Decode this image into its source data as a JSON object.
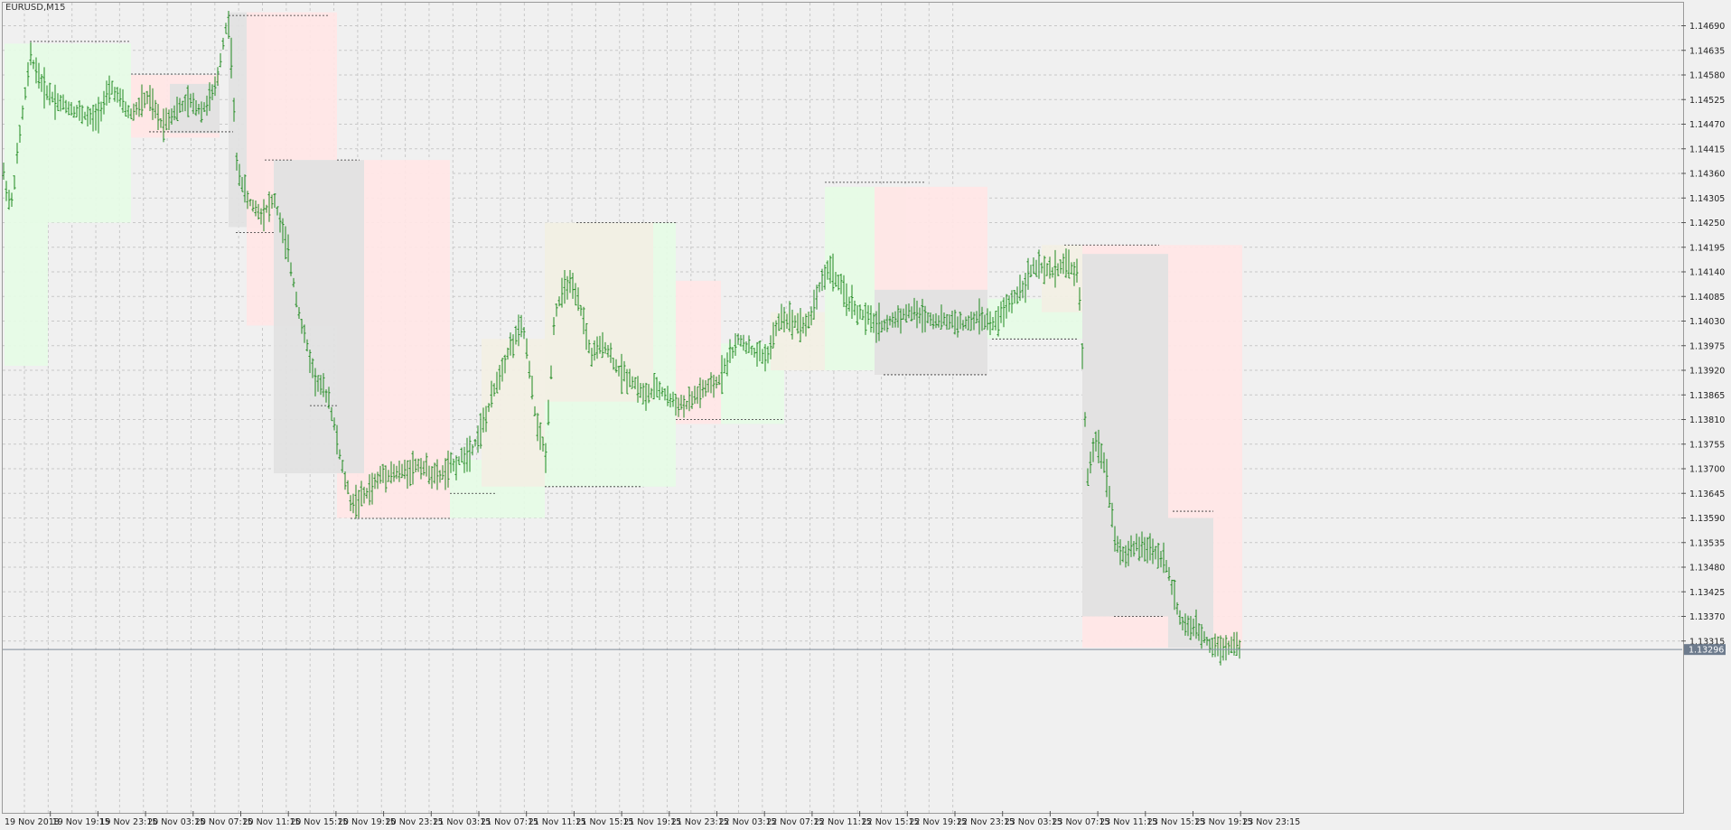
{
  "symbol": "EURUSD,M15",
  "colors": {
    "background": "#f0f0f0",
    "grid": "#c8c8c8",
    "bar": "#1f8a1f",
    "zone_green": "#e6fbe6",
    "zone_red": "#ffe6e6",
    "zone_beige": "#f2efe4",
    "zone_gray": "#e2e2e2",
    "current_price_badge": "#6d7b8d"
  },
  "chart_data": {
    "type": "bar",
    "subtype": "ohlc",
    "timeframe": "M15",
    "symbol": "EURUSD",
    "grid": true,
    "y_axis": {
      "position": "right",
      "range": [
        1.1325,
        1.1472
      ],
      "ticks": [
        "1.14690",
        "1.14635",
        "1.14580",
        "1.14525",
        "1.14470",
        "1.14415",
        "1.14360",
        "1.14305",
        "1.14250",
        "1.14195",
        "1.14140",
        "1.14085",
        "1.14030",
        "1.13975",
        "1.13920",
        "1.13865",
        "1.13810",
        "1.13755",
        "1.13700",
        "1.13645",
        "1.13590",
        "1.13535",
        "1.13480",
        "1.13425",
        "1.13370",
        "1.13315"
      ]
    },
    "x_axis": {
      "ticks": [
        "19 Nov 2018",
        "19 Nov 19:15",
        "19 Nov 23:15",
        "20 Nov 03:15",
        "20 Nov 07:15",
        "20 Nov 11:15",
        "20 Nov 15:15",
        "20 Nov 19:15",
        "20 Nov 23:15",
        "21 Nov 03:15",
        "21 Nov 07:15",
        "21 Nov 11:15",
        "21 Nov 15:15",
        "21 Nov 19:15",
        "21 Nov 23:15",
        "22 Nov 03:15",
        "22 Nov 07:15",
        "22 Nov 11:15",
        "22 Nov 15:15",
        "22 Nov 19:15",
        "22 Nov 23:15",
        "23 Nov 03:15",
        "23 Nov 07:15",
        "23 Nov 11:15",
        "23 Nov 15:15",
        "23 Nov 19:15",
        "23 Nov 23:15"
      ]
    },
    "current_price": "1.13296",
    "price_path": [
      [
        0,
        1.1436
      ],
      [
        8,
        1.1428
      ],
      [
        20,
        1.1448
      ],
      [
        30,
        1.1462
      ],
      [
        45,
        1.1455
      ],
      [
        60,
        1.1452
      ],
      [
        80,
        1.145
      ],
      [
        100,
        1.1448
      ],
      [
        120,
        1.1455
      ],
      [
        140,
        1.1449
      ],
      [
        160,
        1.1453
      ],
      [
        175,
        1.1447
      ],
      [
        190,
        1.145
      ],
      [
        205,
        1.1452
      ],
      [
        220,
        1.145
      ],
      [
        235,
        1.1455
      ],
      [
        245,
        1.1468
      ],
      [
        250,
        1.147
      ],
      [
        258,
        1.1438
      ],
      [
        270,
        1.143
      ],
      [
        285,
        1.1427
      ],
      [
        300,
        1.143
      ],
      [
        315,
        1.1418
      ],
      [
        330,
        1.1402
      ],
      [
        345,
        1.139
      ],
      [
        360,
        1.1386
      ],
      [
        375,
        1.137
      ],
      [
        385,
        1.1362
      ],
      [
        400,
        1.1364
      ],
      [
        420,
        1.1369
      ],
      [
        440,
        1.1369
      ],
      [
        460,
        1.1371
      ],
      [
        480,
        1.1368
      ],
      [
        500,
        1.1371
      ],
      [
        520,
        1.1375
      ],
      [
        535,
        1.1382
      ],
      [
        545,
        1.1389
      ],
      [
        560,
        1.1397
      ],
      [
        575,
        1.1402
      ],
      [
        590,
        1.138
      ],
      [
        600,
        1.1373
      ],
      [
        610,
        1.1405
      ],
      [
        625,
        1.1412
      ],
      [
        640,
        1.1405
      ],
      [
        650,
        1.1395
      ],
      [
        665,
        1.1398
      ],
      [
        680,
        1.1392
      ],
      [
        695,
        1.139
      ],
      [
        710,
        1.1386
      ],
      [
        725,
        1.1388
      ],
      [
        740,
        1.1385
      ],
      [
        755,
        1.1384
      ],
      [
        770,
        1.1387
      ],
      [
        790,
        1.1389
      ],
      [
        800,
        1.1394
      ],
      [
        815,
        1.1399
      ],
      [
        830,
        1.1396
      ],
      [
        845,
        1.1395
      ],
      [
        860,
        1.1404
      ],
      [
        875,
        1.1403
      ],
      [
        890,
        1.1402
      ],
      [
        905,
        1.1412
      ],
      [
        915,
        1.1415
      ],
      [
        930,
        1.1409
      ],
      [
        945,
        1.1405
      ],
      [
        960,
        1.1403
      ],
      [
        975,
        1.1402
      ],
      [
        990,
        1.1404
      ],
      [
        1005,
        1.1405
      ],
      [
        1020,
        1.1404
      ],
      [
        1035,
        1.1403
      ],
      [
        1050,
        1.1403
      ],
      [
        1065,
        1.1402
      ],
      [
        1080,
        1.1404
      ],
      [
        1095,
        1.1402
      ],
      [
        1110,
        1.1406
      ],
      [
        1125,
        1.141
      ],
      [
        1140,
        1.1415
      ],
      [
        1160,
        1.1414
      ],
      [
        1175,
        1.1416
      ],
      [
        1190,
        1.1413
      ],
      [
        1200,
        1.1368
      ],
      [
        1210,
        1.1377
      ],
      [
        1220,
        1.137
      ],
      [
        1230,
        1.1355
      ],
      [
        1240,
        1.135
      ],
      [
        1255,
        1.1353
      ],
      [
        1270,
        1.1352
      ],
      [
        1285,
        1.135
      ],
      [
        1295,
        1.1342
      ],
      [
        1305,
        1.1335
      ],
      [
        1320,
        1.1334
      ],
      [
        1335,
        1.1331
      ],
      [
        1350,
        1.133
      ],
      [
        1362,
        1.1331
      ],
      [
        1370,
        1.13296
      ]
    ],
    "zones": [
      {
        "color": "green",
        "x1": 2,
        "x2": 50,
        "y1": 1.1465,
        "y2": 1.1393
      },
      {
        "color": "green",
        "x1": 30,
        "x2": 142,
        "y1": 1.1465,
        "y2": 1.1425
      },
      {
        "color": "beige",
        "x1": 142,
        "x2": 180,
        "y1": 1.1458,
        "y2": 1.1445
      },
      {
        "color": "red",
        "x1": 142,
        "x2": 240,
        "y1": 1.1458,
        "y2": 1.1444
      },
      {
        "color": "gray",
        "x1": 185,
        "x2": 240,
        "y1": 1.1456,
        "y2": 1.1445
      },
      {
        "color": "gray",
        "x1": 250,
        "x2": 290,
        "y1": 1.1472,
        "y2": 1.1424
      },
      {
        "color": "red",
        "x1": 270,
        "x2": 370,
        "y1": 1.1472,
        "y2": 1.1402
      },
      {
        "color": "red",
        "x1": 370,
        "x2": 495,
        "y1": 1.1439,
        "y2": 1.1359
      },
      {
        "color": "gray",
        "x1": 300,
        "x2": 400,
        "y1": 1.1439,
        "y2": 1.1369
      },
      {
        "color": "green",
        "x1": 495,
        "x2": 600,
        "y1": 1.1372,
        "y2": 1.1359
      },
      {
        "color": "beige",
        "x1": 530,
        "x2": 600,
        "y1": 1.1399,
        "y2": 1.1366
      },
      {
        "color": "green",
        "x1": 600,
        "x2": 745,
        "y1": 1.1425,
        "y2": 1.1366
      },
      {
        "color": "beige",
        "x1": 600,
        "x2": 720,
        "y1": 1.1425,
        "y2": 1.1385
      },
      {
        "color": "red",
        "x1": 745,
        "x2": 795,
        "y1": 1.1412,
        "y2": 1.138
      },
      {
        "color": "green",
        "x1": 795,
        "x2": 865,
        "y1": 1.1398,
        "y2": 1.138
      },
      {
        "color": "beige",
        "x1": 850,
        "x2": 910,
        "y1": 1.1405,
        "y2": 1.1392
      },
      {
        "color": "beige",
        "x1": 910,
        "x2": 965,
        "y1": 1.1433,
        "y2": 1.1392
      },
      {
        "color": "green",
        "x1": 910,
        "x2": 1000,
        "y1": 1.1433,
        "y2": 1.1392
      },
      {
        "color": "red",
        "x1": 965,
        "x2": 1090,
        "y1": 1.1433,
        "y2": 1.1391
      },
      {
        "color": "gray",
        "x1": 965,
        "x2": 1090,
        "y1": 1.141,
        "y2": 1.1391
      },
      {
        "color": "green",
        "x1": 1090,
        "x2": 1195,
        "y1": 1.1408,
        "y2": 1.1399
      },
      {
        "color": "beige",
        "x1": 1150,
        "x2": 1195,
        "y1": 1.142,
        "y2": 1.1405
      },
      {
        "color": "red",
        "x1": 1195,
        "x2": 1372,
        "y1": 1.142,
        "y2": 1.133
      },
      {
        "color": "gray",
        "x1": 1195,
        "x2": 1290,
        "y1": 1.1418,
        "y2": 1.1337
      },
      {
        "color": "gray",
        "x1": 1290,
        "x2": 1340,
        "y1": 1.1359,
        "y2": 1.133
      }
    ],
    "dashed_levels": [
      {
        "x1": 30,
        "x2": 142,
        "y": 1.14655
      },
      {
        "x1": 142,
        "x2": 240,
        "y": 1.14582
      },
      {
        "x1": 162,
        "x2": 255,
        "y": 1.14453
      },
      {
        "x1": 250,
        "x2": 362,
        "y": 1.14713
      },
      {
        "x1": 290,
        "x2": 320,
        "y": 1.1439
      },
      {
        "x1": 258,
        "x2": 300,
        "y": 1.14228
      },
      {
        "x1": 370,
        "x2": 395,
        "y": 1.1439
      },
      {
        "x1": 340,
        "x2": 370,
        "y": 1.13841
      },
      {
        "x1": 385,
        "x2": 495,
        "y": 1.13589
      },
      {
        "x1": 495,
        "x2": 545,
        "y": 1.13645
      },
      {
        "x1": 635,
        "x2": 745,
        "y": 1.1425
      },
      {
        "x1": 600,
        "x2": 708,
        "y": 1.1366
      },
      {
        "x1": 745,
        "x2": 865,
        "y": 1.1381
      },
      {
        "x1": 910,
        "x2": 1020,
        "y": 1.1434
      },
      {
        "x1": 975,
        "x2": 1090,
        "y": 1.1391
      },
      {
        "x1": 1095,
        "x2": 1190,
        "y": 1.1399
      },
      {
        "x1": 1175,
        "x2": 1280,
        "y": 1.142
      },
      {
        "x1": 1230,
        "x2": 1285,
        "y": 1.1337
      },
      {
        "x1": 1295,
        "x2": 1340,
        "y": 1.13605
      }
    ]
  }
}
